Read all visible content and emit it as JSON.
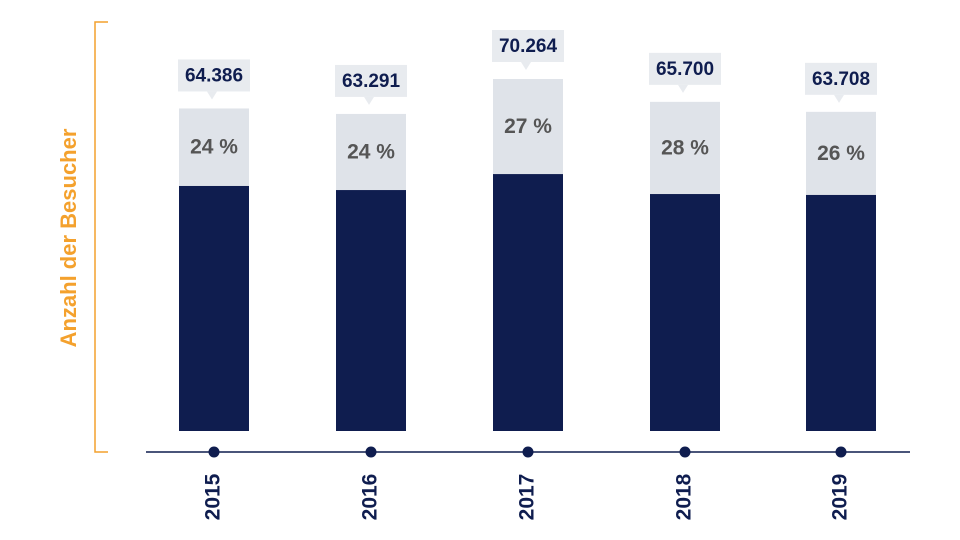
{
  "colors": {
    "primary": "#0f1d4f",
    "secondary": "#dfe3e9",
    "accent": "#f4a12d",
    "callout": "#e8ebef",
    "share_text": "#555555"
  },
  "chart_data": {
    "type": "bar",
    "stacked": true,
    "categories": [
      "2015",
      "2016",
      "2017",
      "2018",
      "2019"
    ],
    "totals": [
      64386,
      63291,
      70264,
      65700,
      63708
    ],
    "total_labels": [
      "64.386",
      "63.291",
      "70.264",
      "65.700",
      "63.708"
    ],
    "share_percent": [
      24,
      24,
      27,
      28,
      26
    ],
    "share_labels": [
      "24 %",
      "24 %",
      "27 %",
      "28 %",
      "26 %"
    ],
    "ylabel": "Anzahl der Besucher",
    "xlabel": "",
    "title": "",
    "ylim": [
      0,
      70264
    ],
    "grid": false,
    "legend": "none",
    "x_tick_rotation": "vertical"
  }
}
